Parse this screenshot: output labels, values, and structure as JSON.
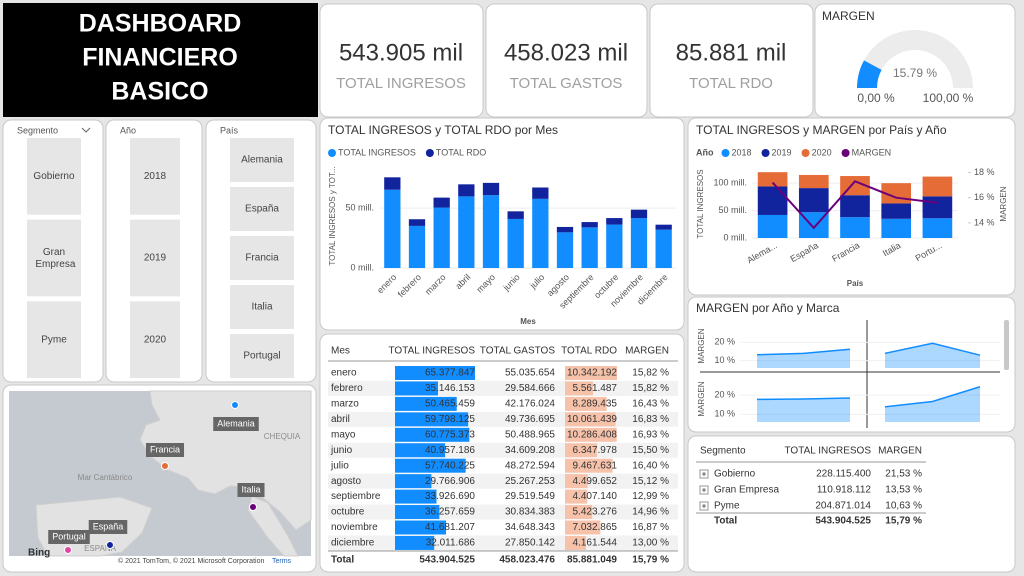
{
  "header": {
    "title_lines": [
      "DASHBOARD",
      "FINANCIERO",
      "BASICO"
    ]
  },
  "kpis": [
    {
      "value": "543.905 mil",
      "label": "TOTAL INGRESOS"
    },
    {
      "value": "458.023 mil",
      "label": "TOTAL GASTOS"
    },
    {
      "value": "85.881 mil",
      "label": "TOTAL RDO"
    }
  ],
  "gauge": {
    "title": "MARGEN",
    "value": 15.79,
    "value_label": "15.79 %",
    "min": 0,
    "min_label": "0,00 %",
    "max": 100,
    "max_label": "100,00 %"
  },
  "slicers": [
    {
      "title": "Segmento",
      "items": [
        "Gobierno",
        "Gran Empresa",
        "Pyme"
      ]
    },
    {
      "title": "Año",
      "items": [
        "2018",
        "2019",
        "2020"
      ]
    },
    {
      "title": "País",
      "items": [
        "Alemania",
        "España",
        "Francia",
        "Italia",
        "Portugal"
      ]
    }
  ],
  "map": {
    "places": [
      "Mar Cantábrico",
      "CHEQUIA",
      "ESPAÑA"
    ],
    "callouts": [
      "Alemania",
      "Francia",
      "Italia",
      "Portugal",
      "España"
    ],
    "brand": "Bing",
    "copyright": "© 2021 TomTom, © 2021 Microsoft Corporation",
    "terms": "Terms"
  },
  "chart_data": [
    {
      "type": "bar",
      "stacked": true,
      "title": "TOTAL INGRESOS y TOTAL RDO por Mes",
      "x_label": "Mes",
      "y_label": "TOTAL INGRESOS y TOT...",
      "categories": [
        "enero",
        "febrero",
        "marzo",
        "abril",
        "mayo",
        "junio",
        "julio",
        "agosto",
        "septiembre",
        "octubre",
        "noviembre",
        "diciembre"
      ],
      "series": [
        {
          "name": "TOTAL INGRESOS",
          "color": "#118dff",
          "values": [
            65.38,
            35.15,
            50.47,
            59.8,
            60.78,
            40.96,
            57.74,
            29.77,
            33.93,
            36.26,
            41.68,
            32.01
          ]
        },
        {
          "name": "TOTAL RDO",
          "color": "#12239e",
          "values": [
            10.34,
            5.56,
            8.29,
            10.06,
            10.29,
            6.35,
            9.47,
            4.5,
            4.41,
            5.42,
            7.03,
            4.16
          ]
        }
      ],
      "ylim": [
        0,
        86
      ],
      "yticks": [
        {
          "value": 0,
          "label": "0 mill."
        },
        {
          "value": 50,
          "label": "50 mill."
        }
      ],
      "grid": true
    },
    {
      "type": "combo",
      "stacked": true,
      "title": "TOTAL INGRESOS y MARGEN por País y Año",
      "legend_title": "Año",
      "x_label": "País",
      "y_label": "TOTAL INGRESOS",
      "y2_label": "MARGEN",
      "categories": [
        "Alema...",
        "España",
        "Francia",
        "Italia",
        "Portu..."
      ],
      "series": [
        {
          "name": "2018",
          "color": "#118dff",
          "values": [
            42,
            47,
            38,
            35,
            36
          ]
        },
        {
          "name": "2019",
          "color": "#12239e",
          "values": [
            52,
            44,
            40,
            28,
            40
          ]
        },
        {
          "name": "2020",
          "color": "#e66c37",
          "values": [
            26,
            24,
            35,
            37,
            36
          ]
        },
        {
          "name": "MARGEN",
          "color": "#6b007b",
          "type": "line",
          "axis": "y2",
          "values": [
            17.2,
            13.6,
            17.3,
            16.0,
            15.6
          ]
        }
      ],
      "ylim": [
        0,
        124
      ],
      "yticks": [
        {
          "value": 0,
          "label": "0 mill."
        },
        {
          "value": 50,
          "label": "50 mill."
        },
        {
          "value": 100,
          "label": "100 mill."
        }
      ],
      "y2lim": [
        12.8,
        18.2
      ],
      "y2ticks": [
        {
          "value": 14,
          "label": "14 %"
        },
        {
          "value": 16,
          "label": "16 %"
        },
        {
          "value": 18,
          "label": "18 %"
        }
      ]
    },
    {
      "type": "area_multiples",
      "title": "MARGEN por Año y Marca",
      "y_label": "MARGEN",
      "color": "#118dff",
      "panels": [
        {
          "values": [
            13.2,
            14,
            16.2
          ]
        },
        {
          "values": [
            14,
            19.5,
            13
          ]
        },
        {
          "values": [
            17.8,
            18,
            18.5
          ]
        },
        {
          "values": [
            13.9,
            16.7,
            24.4
          ]
        }
      ],
      "ylim": [
        6,
        30
      ],
      "yticks": [
        {
          "value": 10,
          "label": "10 %"
        },
        {
          "value": 20,
          "label": "20 %"
        }
      ]
    }
  ],
  "month_table": {
    "headers": [
      "Mes",
      "TOTAL INGRESOS",
      "TOTAL GASTOS",
      "TOTAL RDO",
      "MARGEN"
    ],
    "months": [
      "enero",
      "febrero",
      "marzo",
      "abril",
      "mayo",
      "junio",
      "julio",
      "agosto",
      "septiembre",
      "octubre",
      "noviembre",
      "diciembre"
    ],
    "ingresos": {
      "values": [
        65377847,
        35146153,
        50465459,
        59798125,
        60775373,
        40957186,
        57740225,
        29766906,
        33926690,
        36257659,
        41681207,
        32011686
      ],
      "value_labels": [
        "65.377.847",
        "35.146.153",
        "50.465.459",
        "59.798.125",
        "60.775.373",
        "40.957.186",
        "57.740.225",
        "29.766.906",
        "33.926.690",
        "36.257.659",
        "41.681.207",
        "32.011.686"
      ]
    },
    "gastos": [
      "55.035.654",
      "29.584.666",
      "42.176.024",
      "49.736.695",
      "50.488.965",
      "34.609.208",
      "48.272.594",
      "25.267.253",
      "29.519.549",
      "30.834.383",
      "34.648.343",
      "27.850.142"
    ],
    "rdo": {
      "values": [
        10342192,
        5561487,
        8289435,
        10061439,
        10286408,
        6347978,
        9467631,
        4499652,
        4407140,
        5423276,
        7032865,
        4161544
      ],
      "value_labels": [
        "10.342.192",
        "5.561.487",
        "8.289.435",
        "10.061.439",
        "10.286.408",
        "6.347.978",
        "9.467.631",
        "4.499.652",
        "4.407.140",
        "5.423.276",
        "7.032.865",
        "4.161.544"
      ]
    },
    "margen": [
      "15,82 %",
      "15,82 %",
      "16,43 %",
      "16,83 %",
      "16,93 %",
      "15,50 %",
      "16,40 %",
      "15,12 %",
      "12,99 %",
      "14,96 %",
      "16,87 %",
      "13,00 %"
    ],
    "total": [
      "Total",
      "543.904.525",
      "458.023.476",
      "85.881.049",
      "15,79 %"
    ]
  },
  "segment_table": {
    "headers": [
      "Segmento",
      "TOTAL INGRESOS",
      "MARGEN"
    ],
    "rows": [
      [
        "Gobierno",
        "228.115.400",
        "21,53 %"
      ],
      [
        "Gran Empresa",
        "110.918.112",
        "13,53 %"
      ],
      [
        "Pyme",
        "204.871.014",
        "10,63 %"
      ]
    ],
    "total": [
      "Total",
      "543.904.525",
      "15,79 %"
    ]
  }
}
